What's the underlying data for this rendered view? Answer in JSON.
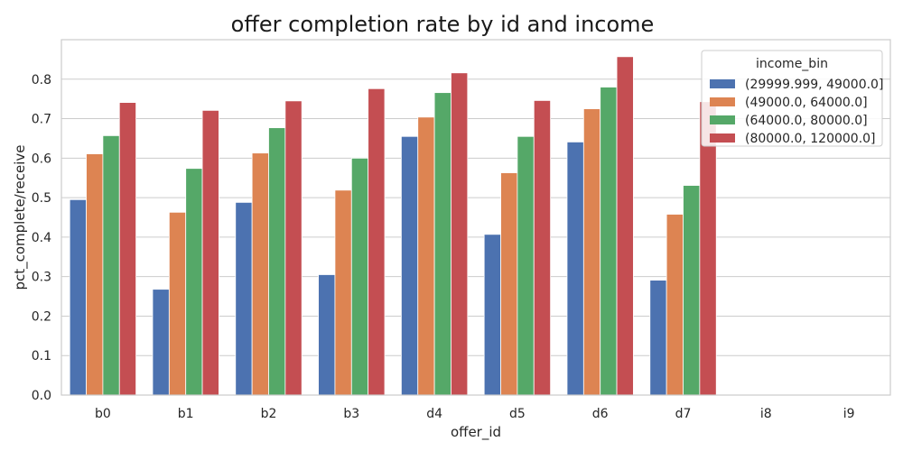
{
  "chart_data": {
    "type": "bar",
    "title": "offer completion rate by id and income",
    "xlabel": "offer_id",
    "ylabel": "pct_complete/receive",
    "categories": [
      "b0",
      "b1",
      "b2",
      "b3",
      "d4",
      "d5",
      "d6",
      "d7",
      "i8",
      "i9"
    ],
    "ylim": [
      0,
      0.9
    ],
    "yticks": [
      0.0,
      0.1,
      0.2,
      0.3,
      0.4,
      0.5,
      0.6,
      0.7,
      0.8
    ],
    "ytick_labels": [
      "0.0",
      "0.1",
      "0.2",
      "0.3",
      "0.4",
      "0.5",
      "0.6",
      "0.7",
      "0.8"
    ],
    "grid": true,
    "legend": {
      "title": "income_bin",
      "placement": "top-right"
    },
    "series": [
      {
        "name": "(29999.999, 49000.0]",
        "color": "#4c72b0",
        "values": [
          0.495,
          0.268,
          0.488,
          0.305,
          0.655,
          0.407,
          0.641,
          0.291,
          0,
          0
        ]
      },
      {
        "name": "(49000.0, 64000.0]",
        "color": "#dd8452",
        "values": [
          0.611,
          0.463,
          0.613,
          0.519,
          0.704,
          0.563,
          0.725,
          0.458,
          0,
          0
        ]
      },
      {
        "name": "(64000.0, 80000.0]",
        "color": "#55a868",
        "values": [
          0.657,
          0.574,
          0.677,
          0.6,
          0.766,
          0.655,
          0.78,
          0.531,
          0,
          0
        ]
      },
      {
        "name": "(80000.0, 120000.0]",
        "color": "#c44e52",
        "values": [
          0.741,
          0.721,
          0.745,
          0.776,
          0.816,
          0.746,
          0.857,
          0.743,
          0,
          0
        ]
      }
    ]
  }
}
